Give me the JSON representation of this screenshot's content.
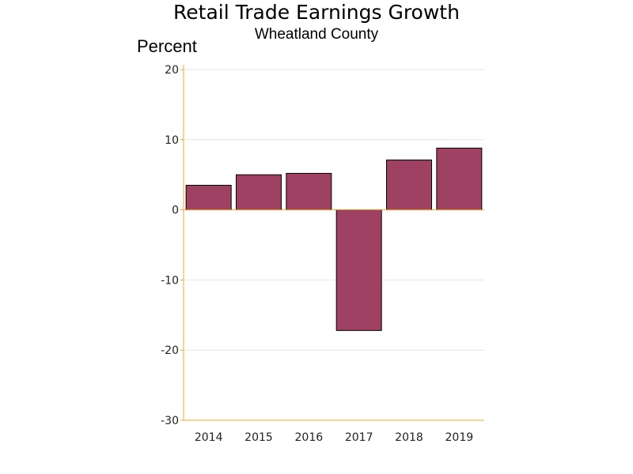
{
  "chart_data": {
    "type": "bar",
    "title": "Retail Trade Earnings Growth",
    "subtitle": "Wheatland County",
    "ylabel": "Percent",
    "xlabel": "",
    "categories": [
      "2014",
      "2015",
      "2016",
      "2017",
      "2018",
      "2019"
    ],
    "values": [
      3.5,
      5.0,
      5.2,
      -17.2,
      7.1,
      8.8
    ],
    "ylim": [
      -30,
      20
    ],
    "yticks": [
      20,
      10,
      0,
      -10,
      -20,
      -30
    ],
    "grid": true,
    "bar_color": "#9e4163",
    "axis_color": "#f0a830"
  }
}
